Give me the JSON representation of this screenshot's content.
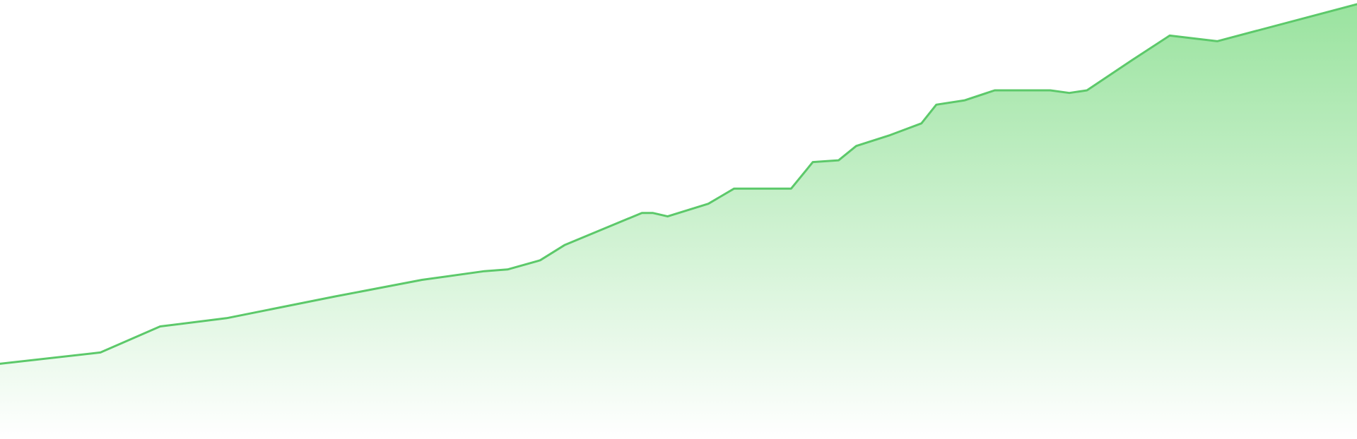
{
  "chart_data": {
    "type": "area",
    "title": "",
    "xlabel": "",
    "ylabel": "",
    "grid": false,
    "legend": "none",
    "x": [
      0,
      0.074,
      0.118,
      0.167,
      0.247,
      0.311,
      0.357,
      0.374,
      0.398,
      0.416,
      0.473,
      0.481,
      0.492,
      0.522,
      0.541,
      0.583,
      0.599,
      0.618,
      0.631,
      0.656,
      0.679,
      0.69,
      0.711,
      0.733,
      0.774,
      0.788,
      0.801,
      0.834,
      0.862,
      0.897,
      1
    ],
    "ylim": [
      0,
      100
    ],
    "series": [
      {
        "values": [
          17.3,
          19.9,
          25.9,
          27.8,
          32.8,
          36.6,
          38.6,
          39.0,
          41.1,
          44.6,
          52.0,
          52.0,
          51.2,
          54.1,
          57.6,
          57.6,
          63.7,
          64.1,
          67.4,
          69.9,
          72.6,
          76.9,
          77.9,
          80.2,
          80.2,
          79.6,
          80.2,
          87.1,
          92.8,
          91.5,
          100.0
        ],
        "color": "#5cc96a"
      }
    ],
    "colors": {
      "line": "#5cc96a",
      "fill_top": "#9ae39f",
      "fill_bottom": "#ffffff"
    }
  }
}
